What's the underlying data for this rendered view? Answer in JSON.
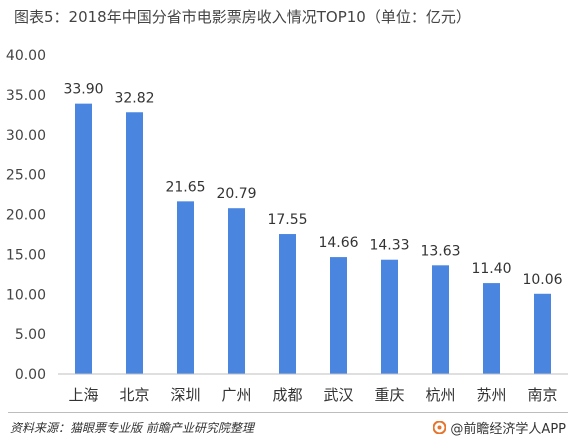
{
  "title": "图表5：2018年中国分省市电影票房收入情况TOP10（单位：亿元）",
  "source": "资料来源：猫眼票专业版 前瞻产业研究院整理",
  "brand": "@前瞻经济学人APP",
  "colors": {
    "bar": "#4a86e0",
    "axis": "#bfbfbf",
    "logo": "#e6742b"
  },
  "chart_data": {
    "type": "bar",
    "title": "图表5：2018年中国分省市电影票房收入情况TOP10（单位：亿元）",
    "categories": [
      "上海",
      "北京",
      "深圳",
      "广州",
      "成都",
      "武汉",
      "重庆",
      "杭州",
      "苏州",
      "南京"
    ],
    "values": [
      33.9,
      32.82,
      21.65,
      20.79,
      17.55,
      14.66,
      14.33,
      13.63,
      11.4,
      10.06
    ],
    "value_labels": [
      "33.90",
      "32.82",
      "21.65",
      "20.79",
      "17.55",
      "14.66",
      "14.33",
      "13.63",
      "11.40",
      "10.06"
    ],
    "yticks": [
      "0.00",
      "5.00",
      "10.00",
      "15.00",
      "20.00",
      "25.00",
      "30.00",
      "35.00",
      "40.00"
    ],
    "ylim": [
      0,
      40
    ],
    "grid": false,
    "legend": "none"
  }
}
